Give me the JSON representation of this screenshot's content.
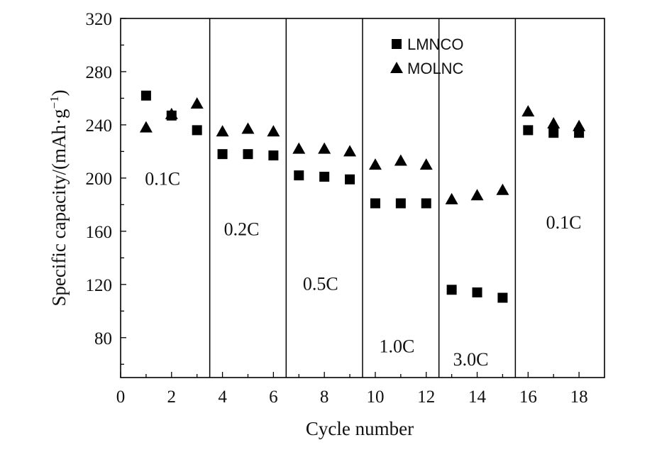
{
  "chart_data": {
    "type": "scatter",
    "xlabel": "Cycle number",
    "ylabel": "Specific capacity/(mAh·g",
    "ylabel_sup": "−1",
    "ylabel_close": ")",
    "xlim": [
      0,
      19
    ],
    "ylim": [
      50,
      320
    ],
    "xticks": [
      0,
      2,
      4,
      6,
      8,
      10,
      12,
      14,
      16,
      18
    ],
    "yticks": [
      80,
      120,
      160,
      200,
      240,
      280,
      320
    ],
    "grid": false,
    "legend_position": "top-center",
    "series": [
      {
        "name": "LMNCO",
        "marker": "square",
        "color": "#000000",
        "x": [
          1,
          2,
          3,
          4,
          5,
          6,
          7,
          8,
          9,
          10,
          11,
          12,
          13,
          14,
          15,
          16,
          17,
          18
        ],
        "y": [
          262,
          247,
          236,
          218,
          218,
          217,
          202,
          201,
          199,
          181,
          181,
          181,
          116,
          114,
          110,
          236,
          234,
          234
        ]
      },
      {
        "name": "MOLNC",
        "marker": "triangle",
        "color": "#000000",
        "x": [
          1,
          2,
          3,
          4,
          5,
          6,
          7,
          8,
          9,
          10,
          11,
          12,
          13,
          14,
          15,
          16,
          17,
          18
        ],
        "y": [
          238,
          248,
          256,
          235,
          237,
          235,
          222,
          222,
          220,
          210,
          213,
          210,
          184,
          187,
          191,
          250,
          241,
          239
        ]
      }
    ],
    "dividers_x": [
      3.5,
      6.5,
      9.5,
      12.5,
      15.5
    ],
    "rate_labels": [
      {
        "text": "0.1C",
        "x": 1.65,
        "y": 195
      },
      {
        "text": "0.2C",
        "x": 4.75,
        "y": 157
      },
      {
        "text": "0.5C",
        "x": 7.85,
        "y": 116
      },
      {
        "text": "1.0C",
        "x": 10.85,
        "y": 69
      },
      {
        "text": "3.0C",
        "x": 13.75,
        "y": 59
      },
      {
        "text": "0.1C",
        "x": 17.4,
        "y": 162
      }
    ]
  }
}
